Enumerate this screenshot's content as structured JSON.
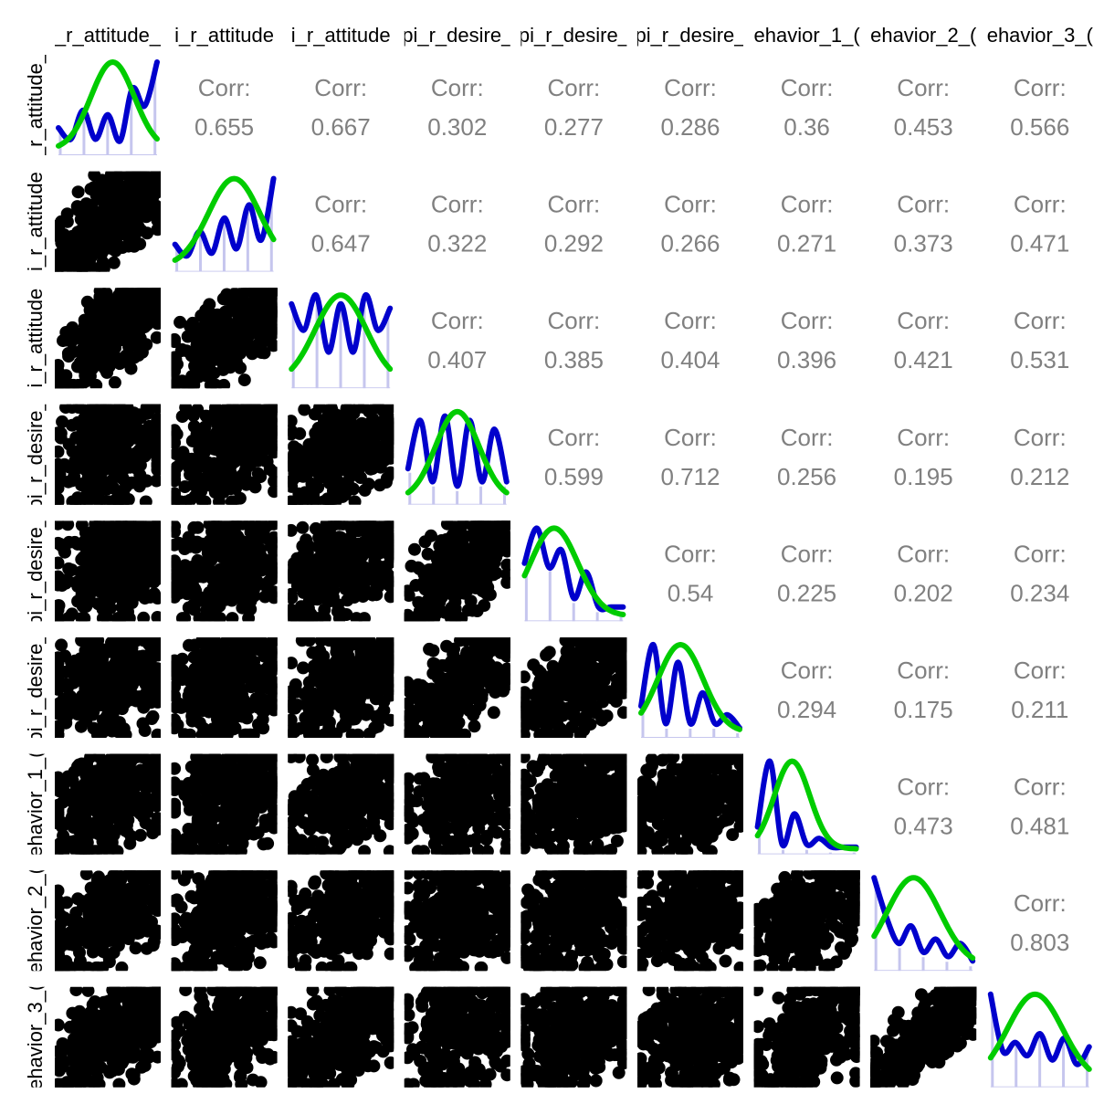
{
  "chart_data": {
    "type": "scatter",
    "subtype": "pairs-matrix",
    "variables": [
      "_r_attitude_",
      "i_r_attitude",
      "i_r_attitude",
      "pi_r_desire_",
      "pi_r_desire_",
      "pi_r_desire_",
      "ehavior_1_(",
      "ehavior_2_(",
      "ehavior_3_("
    ],
    "row_labels": [
      "_r_attitude_",
      "i_r_attitude",
      "i_r_attitude",
      "pi_r_desire_",
      "pi_r_desire_",
      "pi_r_desire_",
      "ehavior_1_(",
      "ehavior_2_(",
      "ehavior_3_("
    ],
    "corr_label": "Corr:",
    "correlations": [
      {
        "row": 0,
        "col": 1,
        "label": "Corr:",
        "value": "0.655"
      },
      {
        "row": 0,
        "col": 2,
        "label": "Corr:",
        "value": "0.667"
      },
      {
        "row": 0,
        "col": 3,
        "label": "Corr:",
        "value": "0.302"
      },
      {
        "row": 0,
        "col": 4,
        "label": "Corr:",
        "value": "0.277"
      },
      {
        "row": 0,
        "col": 5,
        "label": "Corr:",
        "value": "0.286"
      },
      {
        "row": 0,
        "col": 6,
        "label": "Corr:",
        "value": "0.36"
      },
      {
        "row": 0,
        "col": 7,
        "label": "Corr:",
        "value": "0.453"
      },
      {
        "row": 0,
        "col": 8,
        "label": "Corr:",
        "value": "0.566"
      },
      {
        "row": 1,
        "col": 2,
        "label": "Corr:",
        "value": "0.647"
      },
      {
        "row": 1,
        "col": 3,
        "label": "Corr:",
        "value": "0.322"
      },
      {
        "row": 1,
        "col": 4,
        "label": "Corr:",
        "value": "0.292"
      },
      {
        "row": 1,
        "col": 5,
        "label": "Corr:",
        "value": "0.266"
      },
      {
        "row": 1,
        "col": 6,
        "label": "Corr:",
        "value": "0.271"
      },
      {
        "row": 1,
        "col": 7,
        "label": "Corr:",
        "value": "0.373"
      },
      {
        "row": 1,
        "col": 8,
        "label": "Corr:",
        "value": "0.471"
      },
      {
        "row": 2,
        "col": 3,
        "label": "Corr:",
        "value": "0.407"
      },
      {
        "row": 2,
        "col": 4,
        "label": "Corr:",
        "value": "0.385"
      },
      {
        "row": 2,
        "col": 5,
        "label": "Corr:",
        "value": "0.404"
      },
      {
        "row": 2,
        "col": 6,
        "label": "Corr:",
        "value": "0.396"
      },
      {
        "row": 2,
        "col": 7,
        "label": "Corr:",
        "value": "0.421"
      },
      {
        "row": 2,
        "col": 8,
        "label": "Corr:",
        "value": "0.531"
      },
      {
        "row": 3,
        "col": 4,
        "label": "Corr:",
        "value": "0.599"
      },
      {
        "row": 3,
        "col": 5,
        "label": "Corr:",
        "value": "0.712"
      },
      {
        "row": 3,
        "col": 6,
        "label": "Corr:",
        "value": "0.256"
      },
      {
        "row": 3,
        "col": 7,
        "label": "Corr:",
        "value": "0.195"
      },
      {
        "row": 3,
        "col": 8,
        "label": "Corr:",
        "value": "0.212"
      },
      {
        "row": 4,
        "col": 5,
        "label": "Corr:",
        "value": "0.54"
      },
      {
        "row": 4,
        "col": 6,
        "label": "Corr:",
        "value": "0.225"
      },
      {
        "row": 4,
        "col": 7,
        "label": "Corr:",
        "value": "0.202"
      },
      {
        "row": 4,
        "col": 8,
        "label": "Corr:",
        "value": "0.234"
      },
      {
        "row": 5,
        "col": 6,
        "label": "Corr:",
        "value": "0.294"
      },
      {
        "row": 5,
        "col": 7,
        "label": "Corr:",
        "value": "0.175"
      },
      {
        "row": 5,
        "col": 8,
        "label": "Corr:",
        "value": "0.211"
      },
      {
        "row": 6,
        "col": 7,
        "label": "Corr:",
        "value": "0.473"
      },
      {
        "row": 6,
        "col": 8,
        "label": "Corr:",
        "value": "0.481"
      },
      {
        "row": 7,
        "col": 8,
        "label": "Corr:",
        "value": "0.803"
      }
    ],
    "diagonal_density": [
      [
        0.25,
        0.12,
        0.45,
        0.12,
        0.4,
        0.1,
        0.7,
        0.5,
        1.0
      ],
      [
        0.25,
        0.12,
        0.4,
        0.15,
        0.55,
        0.2,
        0.7,
        0.3,
        1.0
      ],
      [
        0.9,
        0.6,
        1.0,
        0.35,
        0.9,
        0.35,
        1.0,
        0.6,
        0.85
      ],
      [
        0.35,
        0.9,
        0.2,
        0.95,
        0.15,
        0.9,
        0.2,
        0.8,
        0.2
      ],
      [
        0.6,
        1.0,
        0.55,
        0.75,
        0.2,
        0.5,
        0.1,
        0.1,
        0.1
      ],
      [
        0.3,
        1.0,
        0.1,
        0.8,
        0.1,
        0.45,
        0.1,
        0.2,
        0.05
      ],
      [
        0.25,
        1.0,
        0.05,
        0.4,
        0.05,
        0.12,
        0.02,
        0.02,
        0.02
      ],
      [
        1.0,
        0.55,
        0.25,
        0.45,
        0.15,
        0.3,
        0.1,
        0.25,
        0.05
      ],
      [
        1.0,
        0.35,
        0.45,
        0.3,
        0.55,
        0.25,
        0.5,
        0.2,
        0.4
      ]
    ],
    "diagonal_normal": [
      {
        "mean": 0.55,
        "sd": 0.22
      },
      {
        "mean": 0.6,
        "sd": 0.26
      },
      {
        "mean": 0.5,
        "sd": 0.26
      },
      {
        "mean": 0.5,
        "sd": 0.22
      },
      {
        "mean": 0.3,
        "sd": 0.24
      },
      {
        "mean": 0.4,
        "sd": 0.23
      },
      {
        "mean": 0.35,
        "sd": 0.18
      },
      {
        "mean": 0.4,
        "sd": 0.27
      },
      {
        "mean": 0.45,
        "sd": 0.28
      }
    ],
    "colors": {
      "points": "#000000",
      "density_line": "#0000cc",
      "normal_line": "#00cc00",
      "hist_bars": "#c6c6ee",
      "corr_text": "#808080",
      "strip_text": "#000000"
    },
    "grid": false,
    "legend": "none"
  }
}
